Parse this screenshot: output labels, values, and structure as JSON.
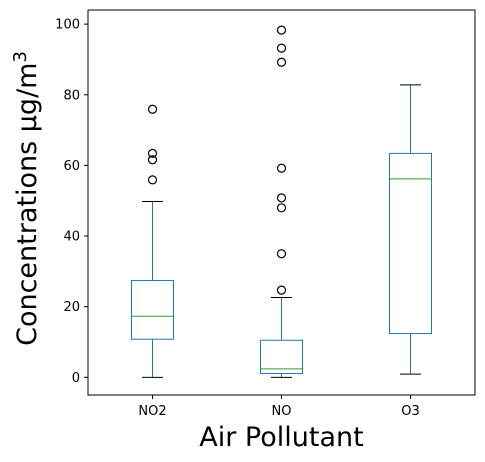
{
  "chart_data": {
    "type": "box",
    "title": "",
    "xlabel": "Air Pollutant",
    "ylabel": "Concentrations μg/m",
    "ylabel_superscript": "3",
    "ylim": [
      -5,
      104
    ],
    "yticks": [
      0,
      20,
      40,
      60,
      80,
      100
    ],
    "ytick_labels": [
      "0",
      "20",
      "40",
      "60",
      "80",
      "100"
    ],
    "categories": [
      "NO2",
      "NO",
      "O3"
    ],
    "boxes": [
      {
        "category": "NO2",
        "whisker_low": 0,
        "q1": 10.8,
        "median": 17.3,
        "q3": 27.4,
        "whisker_high": 49.8,
        "outliers": [
          75.9,
          63.4,
          61.6,
          55.9
        ]
      },
      {
        "category": "NO",
        "whisker_low": 0,
        "q1": 1.1,
        "median": 2.4,
        "q3": 10.5,
        "whisker_high": 22.6,
        "outliers": [
          98.3,
          93.2,
          89.2,
          59.2,
          50.8,
          48.0,
          35.0,
          24.7
        ]
      },
      {
        "category": "O3",
        "whisker_low": 0.9,
        "q1": 12.4,
        "median": 56.2,
        "q3": 63.4,
        "whisker_high": 82.8,
        "outliers": []
      }
    ],
    "grid": false,
    "colors": {
      "box": "#1f77b4",
      "median": "#2ca02c",
      "whisker_cap": "#000000",
      "outlier": "#000000"
    }
  }
}
